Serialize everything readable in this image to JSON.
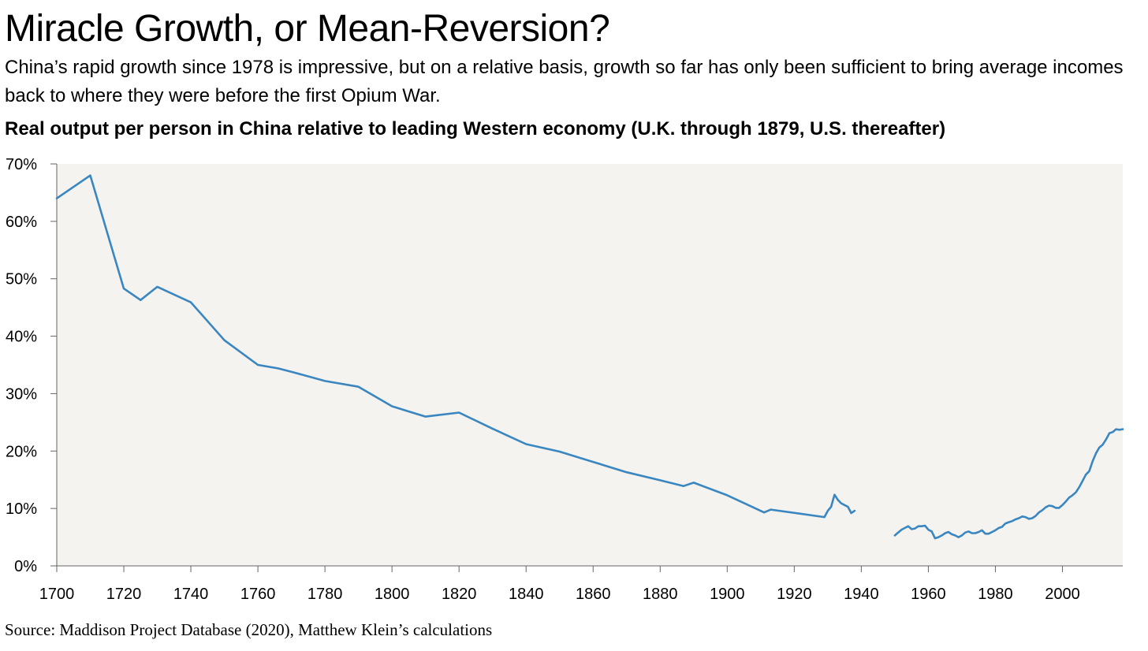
{
  "title": "Miracle Growth, or Mean-Reversion?",
  "subtitle": "China’s rapid growth since 1978 is impressive, but on a relative basis, growth so far has only been sufficient to bring average incomes back to where they were before the first Opium War.",
  "source": "Source: Maddison Project Database (2020), Matthew Klein’s calculations",
  "colors": {
    "series": "#3a86c1",
    "plot_background": "#f4f3ef",
    "axis": "#666666"
  },
  "chart_data": {
    "type": "line",
    "title": "Real output per person in China relative to leading Western economy (U.K. through 1879, U.S. thereafter)",
    "xlabel": "",
    "ylabel": "",
    "xlim": [
      1700,
      2018
    ],
    "ylim": [
      0,
      70
    ],
    "x_ticks": [
      1700,
      1720,
      1740,
      1760,
      1780,
      1800,
      1820,
      1840,
      1860,
      1880,
      1900,
      1920,
      1940,
      1960,
      1980,
      2000
    ],
    "x_tick_labels": [
      "1700",
      "1720",
      "1740",
      "1760",
      "1780",
      "1800",
      "1820",
      "1840",
      "1860",
      "1880",
      "1900",
      "1920",
      "1940",
      "1960",
      "1980",
      "2000"
    ],
    "y_ticks": [
      0,
      10,
      20,
      30,
      40,
      50,
      60,
      70
    ],
    "y_tick_labels": [
      "0%",
      "10%",
      "20%",
      "30%",
      "40%",
      "50%",
      "60%",
      "70%"
    ],
    "grid": false,
    "legend": "none",
    "series": [
      {
        "unit": "%",
        "segments": [
          [
            [
              1700,
              64
            ],
            [
              1710,
              68
            ],
            [
              1720,
              48.3
            ],
            [
              1725,
              46.3
            ],
            [
              1730,
              48.6
            ],
            [
              1740,
              45.9
            ],
            [
              1750,
              39.3
            ],
            [
              1760,
              35
            ],
            [
              1766,
              34.4
            ],
            [
              1770,
              33.8
            ],
            [
              1780,
              32.2
            ],
            [
              1790,
              31.2
            ],
            [
              1800,
              27.8
            ],
            [
              1810,
              26
            ],
            [
              1820,
              26.7
            ],
            [
              1830,
              23.9
            ],
            [
              1840,
              21.2
            ],
            [
              1850,
              19.9
            ],
            [
              1860,
              18.1
            ],
            [
              1870,
              16.3
            ],
            [
              1880,
              14.9
            ],
            [
              1887,
              13.9
            ],
            [
              1890,
              14.5
            ],
            [
              1900,
              12.3
            ],
            [
              1911,
              9.3
            ],
            [
              1913,
              9.8
            ],
            [
              1929,
              8.5
            ],
            [
              1930,
              9.6
            ],
            [
              1931,
              10.3
            ],
            [
              1932,
              12.4
            ],
            [
              1933,
              11.5
            ],
            [
              1934,
              10.9
            ],
            [
              1935,
              10.6
            ],
            [
              1936,
              10.3
            ],
            [
              1937,
              9.2
            ],
            [
              1938,
              9.6
            ]
          ],
          [
            [
              1950,
              5.3
            ],
            [
              1951,
              5.8
            ],
            [
              1952,
              6.3
            ],
            [
              1953,
              6.6
            ],
            [
              1954,
              6.9
            ],
            [
              1955,
              6.4
            ],
            [
              1956,
              6.5
            ],
            [
              1957,
              6.9
            ],
            [
              1958,
              6.9
            ],
            [
              1959,
              7
            ],
            [
              1960,
              6.3
            ],
            [
              1961,
              6
            ],
            [
              1962,
              4.8
            ],
            [
              1963,
              5
            ],
            [
              1964,
              5.3
            ],
            [
              1965,
              5.7
            ],
            [
              1966,
              5.9
            ],
            [
              1967,
              5.5
            ],
            [
              1968,
              5.3
            ],
            [
              1969,
              5
            ],
            [
              1970,
              5.3
            ],
            [
              1971,
              5.8
            ],
            [
              1972,
              6
            ],
            [
              1973,
              5.7
            ],
            [
              1974,
              5.7
            ],
            [
              1975,
              5.9
            ],
            [
              1976,
              6.2
            ],
            [
              1977,
              5.6
            ],
            [
              1978,
              5.6
            ],
            [
              1979,
              5.9
            ],
            [
              1980,
              6.2
            ],
            [
              1981,
              6.6
            ],
            [
              1982,
              6.8
            ],
            [
              1983,
              7.4
            ],
            [
              1984,
              7.6
            ],
            [
              1985,
              7.8
            ],
            [
              1986,
              8.1
            ],
            [
              1987,
              8.3
            ],
            [
              1988,
              8.6
            ],
            [
              1989,
              8.5
            ],
            [
              1990,
              8.2
            ],
            [
              1991,
              8.3
            ],
            [
              1992,
              8.7
            ],
            [
              1993,
              9.3
            ],
            [
              1994,
              9.7
            ],
            [
              1995,
              10.2
            ],
            [
              1996,
              10.5
            ],
            [
              1997,
              10.4
            ],
            [
              1998,
              10.1
            ],
            [
              1999,
              10.1
            ],
            [
              2000,
              10.6
            ],
            [
              2001,
              11.2
            ],
            [
              2002,
              11.9
            ],
            [
              2003,
              12.3
            ],
            [
              2004,
              12.8
            ],
            [
              2005,
              13.7
            ],
            [
              2006,
              14.8
            ],
            [
              2007,
              15.9
            ],
            [
              2008,
              16.5
            ],
            [
              2009,
              18.2
            ],
            [
              2010,
              19.6
            ],
            [
              2011,
              20.6
            ],
            [
              2012,
              21.1
            ],
            [
              2013,
              22
            ],
            [
              2014,
              23.1
            ],
            [
              2015,
              23.3
            ],
            [
              2016,
              23.8
            ],
            [
              2017,
              23.7
            ],
            [
              2018,
              23.8
            ]
          ]
        ]
      }
    ]
  }
}
